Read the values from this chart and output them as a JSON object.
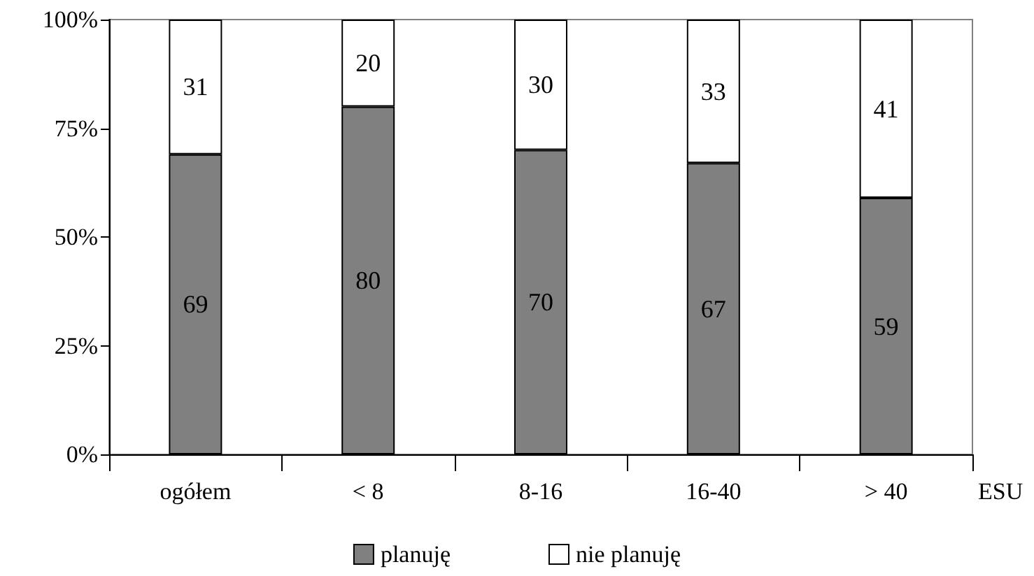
{
  "chart_data": {
    "type": "bar",
    "stacked": true,
    "xlabel": "ESU",
    "categories": [
      "ogółem",
      "< 8",
      "8-16",
      "16-40",
      "> 40"
    ],
    "series": [
      {
        "name": "planuję",
        "color": "#808080",
        "values": [
          69,
          80,
          70,
          67,
          59
        ]
      },
      {
        "name": "nie planuję",
        "color": "#ffffff",
        "values": [
          31,
          20,
          30,
          33,
          41
        ]
      }
    ],
    "ylim": [
      0,
      100
    ],
    "yticks": [
      {
        "value": 0,
        "label": "0%"
      },
      {
        "value": 25,
        "label": "25%"
      },
      {
        "value": 50,
        "label": "50%"
      },
      {
        "value": 75,
        "label": "75%"
      },
      {
        "value": 100,
        "label": "100%"
      }
    ],
    "data_labels": true,
    "grid": false,
    "legend": "bottom"
  }
}
